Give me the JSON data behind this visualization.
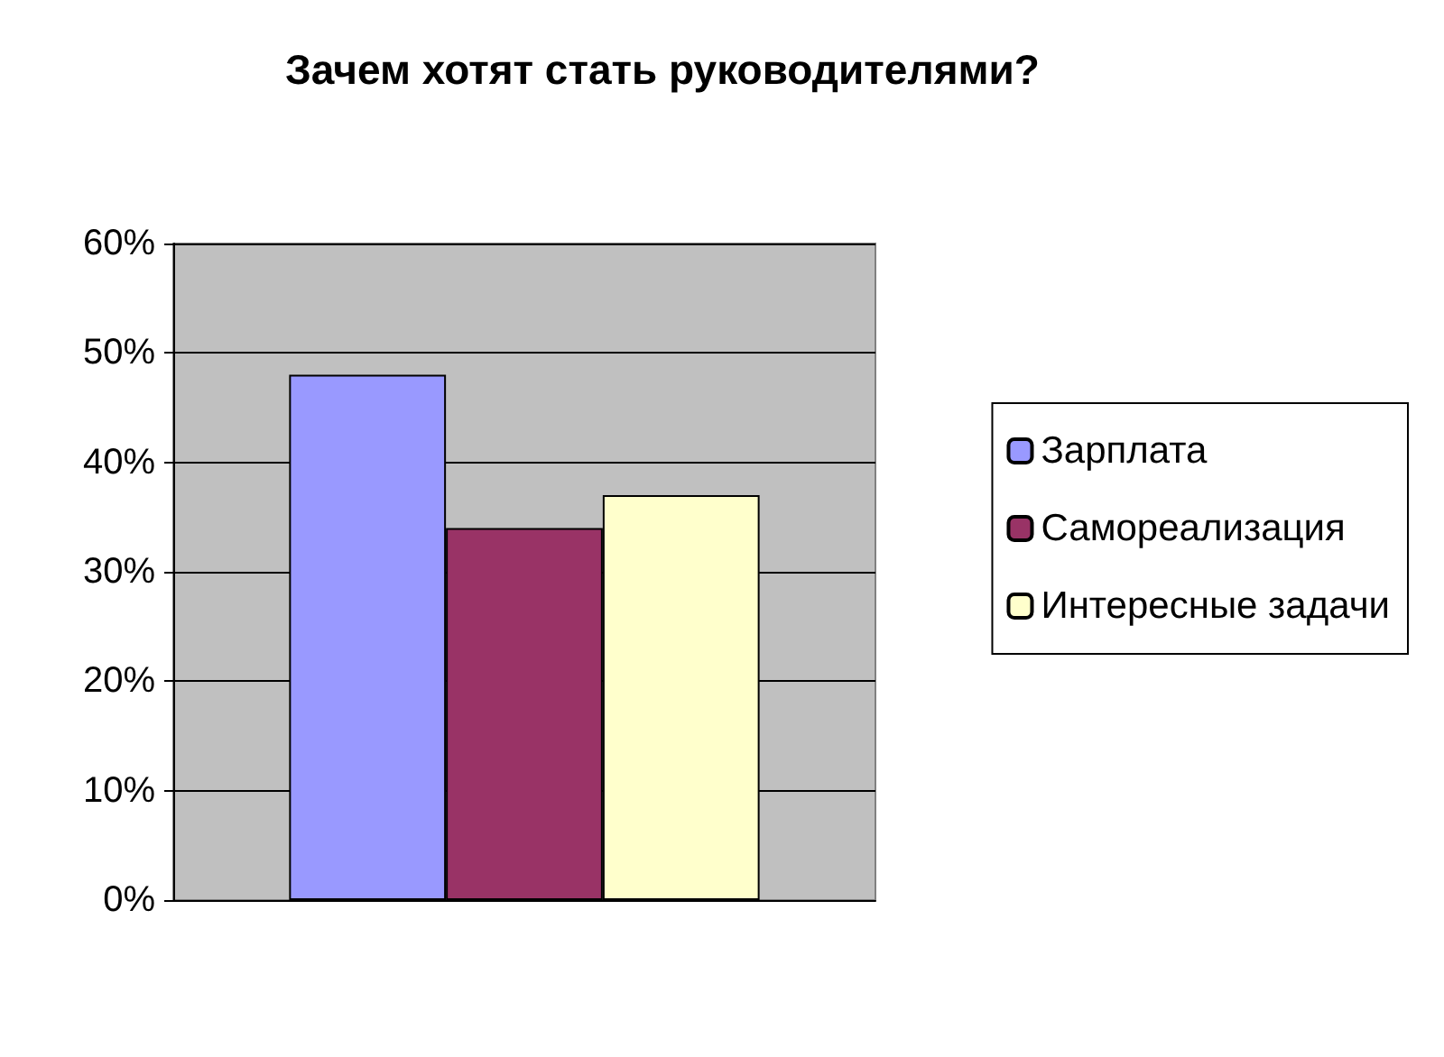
{
  "chart_data": {
    "type": "bar",
    "title": "Зачем хотят стать руководителями?",
    "categories": [
      null
    ],
    "series": [
      {
        "name": "Зарплата",
        "color": "#9999ff",
        "values": [
          48
        ]
      },
      {
        "name": "Самореализация",
        "color": "#993366",
        "values": [
          34
        ]
      },
      {
        "name": "Интересные задачи",
        "color": "#ffffcc",
        "values": [
          37
        ]
      }
    ],
    "ylim": [
      0,
      60
    ],
    "yticks": [
      {
        "value": 0,
        "label": "0%"
      },
      {
        "value": 10,
        "label": "10%"
      },
      {
        "value": 20,
        "label": "20%"
      },
      {
        "value": 30,
        "label": "30%"
      },
      {
        "value": 40,
        "label": "40%"
      },
      {
        "value": 50,
        "label": "50%"
      },
      {
        "value": 60,
        "label": "60%"
      }
    ],
    "grid": "y",
    "legend": "right",
    "tick_labels": "y"
  }
}
